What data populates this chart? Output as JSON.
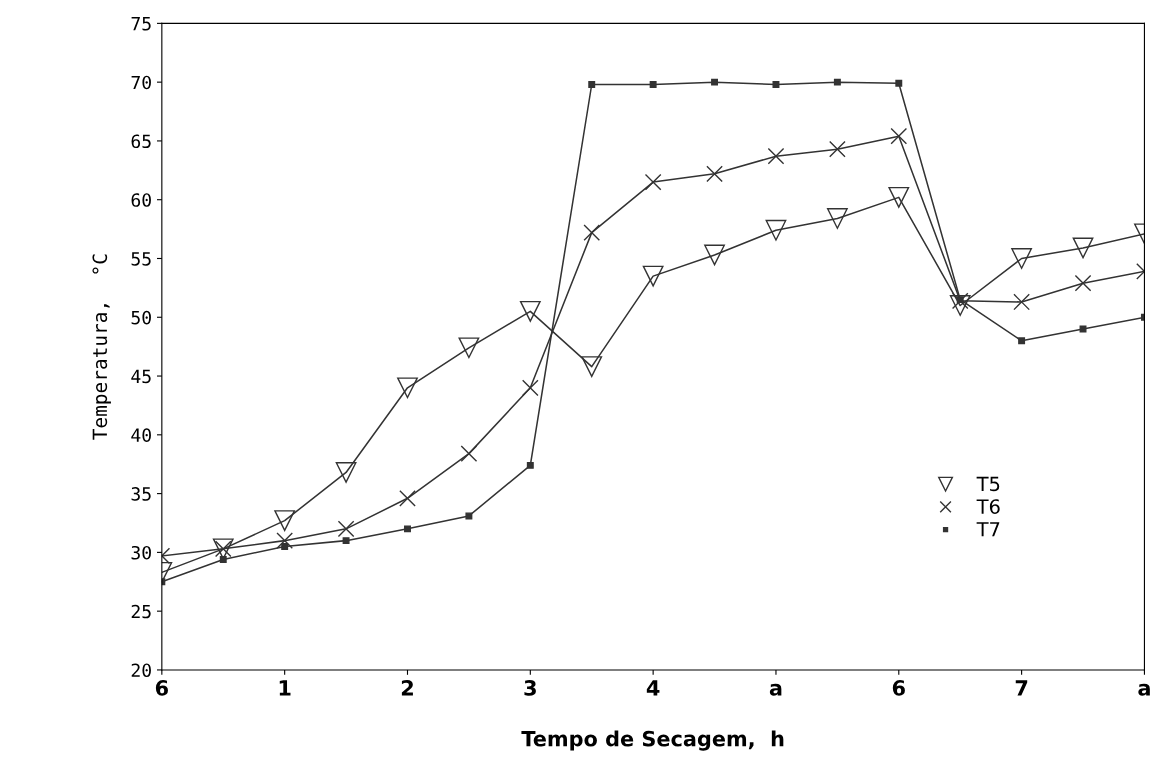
{
  "chart_data": {
    "type": "line",
    "xlabel": "Tempo de Secagem,  h",
    "ylabel": "Temperatura,  °C",
    "categories": [
      "6",
      null,
      "1",
      null,
      "2",
      null,
      "3",
      null,
      "4",
      null,
      "a",
      null,
      "6",
      null,
      "7",
      null,
      "a"
    ],
    "series": [
      {
        "name": "T5",
        "color": "#333333",
        "marker": "triangle",
        "values": [
          28.3,
          30.3,
          32.7,
          36.8,
          44,
          47.4,
          50.5,
          45.8,
          53.5,
          55.3,
          57.4,
          58.4,
          60.2,
          51,
          55,
          55.9,
          57.1
        ]
      },
      {
        "name": "T6",
        "color": "#333333",
        "marker": "cross",
        "values": [
          29.7,
          30.3,
          31,
          32,
          34.6,
          38.4,
          44,
          57.2,
          61.5,
          62.2,
          63.7,
          64.3,
          65.4,
          51.4,
          51.3,
          52.9,
          53.9
        ]
      },
      {
        "name": "T7",
        "color": "#333333",
        "marker": "square",
        "values": [
          27.5,
          29.4,
          30.5,
          31,
          32,
          33.1,
          37.4,
          69.8,
          69.8,
          70,
          69.8,
          70,
          69.9,
          51.5,
          48,
          49,
          50
        ]
      }
    ],
    "ylim": [
      20,
      75
    ],
    "yticks": [
      20,
      25,
      30,
      35,
      40,
      45,
      50,
      55,
      60,
      65,
      70,
      75
    ],
    "grid": false,
    "legend": "right",
    "line_style": "solid"
  }
}
